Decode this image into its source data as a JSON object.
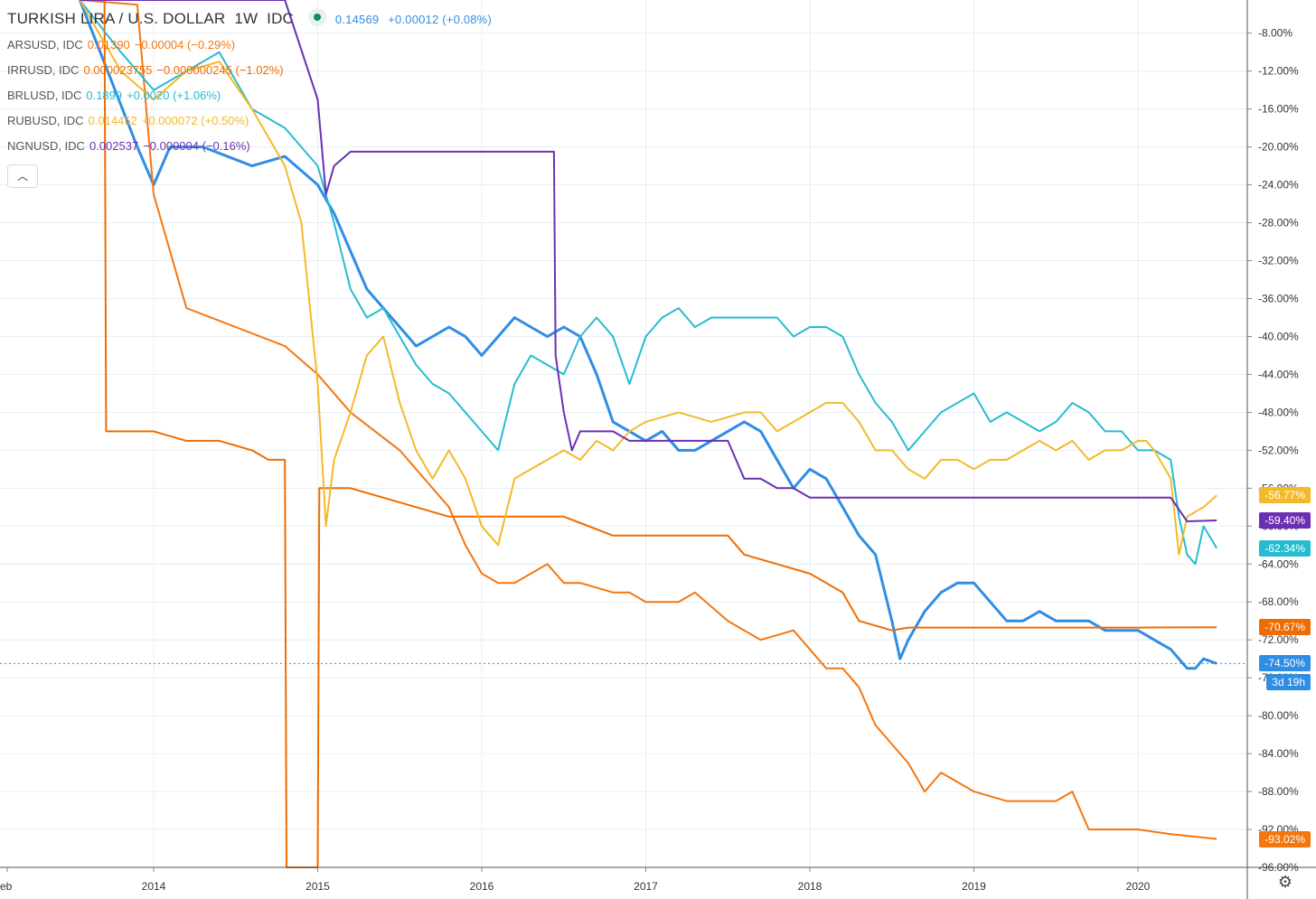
{
  "legend": {
    "main_symbol": "TURKISH LIRA / U.S. DOLLAR",
    "main_interval": "1W",
    "main_source": "IDC",
    "main_price": "0.14569",
    "main_change": "+0.00012 (+0.08%)",
    "items": [
      {
        "symbol": "ARSUSD, IDC",
        "price": "0.01390",
        "change": "−0.00004 (−0.29%)",
        "color": "#f5760f"
      },
      {
        "symbol": "IRRUSD, IDC",
        "price": "0.000023755",
        "change": "−0.000000245 (−1.02%)",
        "color": "#ef6c00"
      },
      {
        "symbol": "BRLUSD, IDC",
        "price": "0.1899",
        "change": "+0.0020 (+1.06%)",
        "color": "#26bcd0"
      },
      {
        "symbol": "RUBUSD, IDC",
        "price": "0.014452",
        "change": "+0.000072 (+0.50%)",
        "color": "#f4b928"
      },
      {
        "symbol": "NGNUSD, IDC",
        "price": "0.002537",
        "change": "−0.000004 (−0.16%)",
        "color": "#6b2fb3"
      }
    ],
    "collapse_icon": "chevron-up-icon"
  },
  "axis": {
    "y_ticks": [
      "-8.00%",
      "-12.00%",
      "-16.00%",
      "-20.00%",
      "-24.00%",
      "-28.00%",
      "-32.00%",
      "-36.00%",
      "-40.00%",
      "-44.00%",
      "-48.00%",
      "-52.00%",
      "-56.00%",
      "-60.00%",
      "-64.00%",
      "-68.00%",
      "-72.00%",
      "-76.00%",
      "-80.00%",
      "-84.00%",
      "-88.00%",
      "-92.00%",
      "-96.00%"
    ],
    "x_ticks": [
      "eb",
      "2014",
      "2015",
      "2016",
      "2017",
      "2018",
      "2019",
      "2020"
    ],
    "countdown": "3d 19h",
    "settings_icon": "gear-icon"
  },
  "chart_data": {
    "type": "line",
    "title": "TURKISH LIRA / U.S. DOLLAR · 1W · IDC",
    "xlabel": "",
    "ylabel": "",
    "ylim": [
      -96,
      -4.5
    ],
    "x_unit": "year",
    "grid": true,
    "series": [
      {
        "name": "TRYUSD",
        "color": "#2f8de4",
        "last_label": "-74.50%",
        "x": [
          2013.55,
          2013.9,
          2014.0,
          2014.1,
          2014.3,
          2014.6,
          2014.8,
          2015.0,
          2015.1,
          2015.2,
          2015.3,
          2015.4,
          2015.5,
          2015.6,
          2015.7,
          2015.8,
          2015.9,
          2016.0,
          2016.1,
          2016.2,
          2016.3,
          2016.4,
          2016.5,
          2016.6,
          2016.7,
          2016.8,
          2016.9,
          2017.0,
          2017.1,
          2017.2,
          2017.3,
          2017.4,
          2017.5,
          2017.6,
          2017.7,
          2017.8,
          2017.9,
          2018.0,
          2018.1,
          2018.2,
          2018.3,
          2018.4,
          2018.5,
          2018.55,
          2018.6,
          2018.7,
          2018.8,
          2018.9,
          2019.0,
          2019.1,
          2019.2,
          2019.3,
          2019.4,
          2019.5,
          2019.6,
          2019.7,
          2019.8,
          2019.9,
          2020.0,
          2020.1,
          2020.2,
          2020.3,
          2020.35,
          2020.4,
          2020.48
        ],
        "y": [
          -4.5,
          -20,
          -24,
          -20,
          -20,
          -22,
          -21,
          -24,
          -27,
          -31,
          -35,
          -37,
          -39,
          -41,
          -40,
          -39,
          -40,
          -42,
          -40,
          -38,
          -39,
          -40,
          -39,
          -40,
          -44,
          -49,
          -50,
          -51,
          -50,
          -52,
          -52,
          -51,
          -50,
          -49,
          -50,
          -53,
          -56,
          -54,
          -55,
          -58,
          -61,
          -63,
          -70,
          -74,
          -72,
          -69,
          -67,
          -66,
          -66,
          -68,
          -70,
          -70,
          -69,
          -70,
          -70,
          -70,
          -71,
          -71,
          -71,
          -72,
          -73,
          -75,
          -75,
          -74,
          -74.5
        ]
      },
      {
        "name": "ARSUSD",
        "color": "#f5760f",
        "last_label": "-93.02%",
        "x": [
          2013.55,
          2013.9,
          2014.0,
          2014.2,
          2014.5,
          2014.8,
          2015.0,
          2015.2,
          2015.5,
          2015.8,
          2015.9,
          2016.0,
          2016.1,
          2016.2,
          2016.4,
          2016.5,
          2016.6,
          2016.8,
          2016.9,
          2017.0,
          2017.2,
          2017.3,
          2017.5,
          2017.6,
          2017.7,
          2017.9,
          2018.0,
          2018.1,
          2018.2,
          2018.3,
          2018.4,
          2018.5,
          2018.6,
          2018.7,
          2018.8,
          2018.9,
          2019.0,
          2019.2,
          2019.3,
          2019.5,
          2019.6,
          2019.7,
          2019.8,
          2020.0,
          2020.2,
          2020.48
        ],
        "y": [
          -4.5,
          -5,
          -25,
          -37,
          -39,
          -41,
          -44,
          -48,
          -52,
          -58,
          -62,
          -65,
          -66,
          -66,
          -64,
          -66,
          -66,
          -67,
          -67,
          -68,
          -68,
          -67,
          -70,
          -71,
          -72,
          -71,
          -73,
          -75,
          -75,
          -77,
          -81,
          -83,
          -85,
          -88,
          -86,
          -87,
          -88,
          -89,
          -89,
          -89,
          -88,
          -92,
          -92,
          -92,
          -92.5,
          -93
        ]
      },
      {
        "name": "IRRUSD",
        "color": "#ef6c00",
        "last_label": "-70.67%",
        "x": [
          2013.55,
          2013.7,
          2013.71,
          2013.8,
          2014.0,
          2014.2,
          2014.4,
          2014.6,
          2014.7,
          2014.8,
          2014.81,
          2015.0,
          2015.01,
          2015.2,
          2015.4,
          2015.6,
          2015.8,
          2016.0,
          2016.2,
          2016.5,
          2016.8,
          2017.0,
          2017.3,
          2017.5,
          2017.6,
          2017.8,
          2018.0,
          2018.2,
          2018.3,
          2018.5,
          2018.6,
          2019.0,
          2019.5,
          2020.0,
          2020.48
        ],
        "y": [
          -4.5,
          -4.5,
          -50,
          -50,
          -50,
          -51,
          -51,
          -52,
          -53,
          -53,
          -100,
          -100,
          -56,
          -56,
          -57,
          -58,
          -59,
          -59,
          -59,
          -59,
          -61,
          -61,
          -61,
          -61,
          -63,
          -64,
          -65,
          -67,
          -70,
          -71,
          -70.7,
          -70.7,
          -70.7,
          -70.7,
          -70.67
        ]
      },
      {
        "name": "BRLUSD",
        "color": "#26bcd0",
        "last_label": "-62.34%",
        "x": [
          2013.55,
          2013.8,
          2014.0,
          2014.2,
          2014.4,
          2014.6,
          2014.8,
          2015.0,
          2015.1,
          2015.2,
          2015.3,
          2015.4,
          2015.5,
          2015.6,
          2015.7,
          2015.8,
          2015.9,
          2016.0,
          2016.1,
          2016.2,
          2016.3,
          2016.4,
          2016.5,
          2016.6,
          2016.7,
          2016.8,
          2016.9,
          2017.0,
          2017.1,
          2017.2,
          2017.3,
          2017.4,
          2017.5,
          2017.6,
          2017.7,
          2017.8,
          2017.9,
          2018.0,
          2018.1,
          2018.2,
          2018.3,
          2018.4,
          2018.5,
          2018.6,
          2018.7,
          2018.8,
          2018.9,
          2019.0,
          2019.1,
          2019.2,
          2019.3,
          2019.4,
          2019.5,
          2019.6,
          2019.7,
          2019.8,
          2019.9,
          2020.0,
          2020.1,
          2020.2,
          2020.25,
          2020.3,
          2020.35,
          2020.4,
          2020.48
        ],
        "y": [
          -4.5,
          -10,
          -14,
          -12,
          -10,
          -16,
          -18,
          -22,
          -28,
          -35,
          -38,
          -37,
          -40,
          -43,
          -45,
          -46,
          -48,
          -50,
          -52,
          -45,
          -42,
          -43,
          -44,
          -40,
          -38,
          -40,
          -45,
          -40,
          -38,
          -37,
          -39,
          -38,
          -38,
          -38,
          -38,
          -38,
          -40,
          -39,
          -39,
          -40,
          -44,
          -47,
          -49,
          -52,
          -50,
          -48,
          -47,
          -46,
          -49,
          -48,
          -49,
          -50,
          -49,
          -47,
          -48,
          -50,
          -50,
          -52,
          -52,
          -53,
          -59,
          -63,
          -64,
          -60,
          -62.34
        ]
      },
      {
        "name": "RUBUSD",
        "color": "#f4b928",
        "last_label": "-56.77%",
        "x": [
          2013.55,
          2013.8,
          2014.0,
          2014.2,
          2014.4,
          2014.6,
          2014.8,
          2014.9,
          2015.0,
          2015.05,
          2015.1,
          2015.2,
          2015.3,
          2015.4,
          2015.5,
          2015.6,
          2015.7,
          2015.8,
          2015.9,
          2016.0,
          2016.1,
          2016.2,
          2016.3,
          2016.4,
          2016.5,
          2016.6,
          2016.7,
          2016.8,
          2016.9,
          2017.0,
          2017.2,
          2017.4,
          2017.6,
          2017.7,
          2017.8,
          2017.9,
          2018.0,
          2018.1,
          2018.2,
          2018.3,
          2018.4,
          2018.5,
          2018.6,
          2018.7,
          2018.8,
          2018.9,
          2019.0,
          2019.1,
          2019.2,
          2019.3,
          2019.4,
          2019.5,
          2019.6,
          2019.7,
          2019.8,
          2019.9,
          2020.0,
          2020.05,
          2020.1,
          2020.2,
          2020.25,
          2020.3,
          2020.4,
          2020.48
        ],
        "y": [
          -4.5,
          -12,
          -15,
          -12,
          -11,
          -16,
          -22,
          -28,
          -45,
          -60,
          -53,
          -48,
          -42,
          -40,
          -47,
          -52,
          -55,
          -52,
          -55,
          -60,
          -62,
          -55,
          -54,
          -53,
          -52,
          -53,
          -51,
          -52,
          -50,
          -49,
          -48,
          -49,
          -48,
          -48,
          -50,
          -49,
          -48,
          -47,
          -47,
          -49,
          -52,
          -52,
          -54,
          -55,
          -53,
          -53,
          -54,
          -53,
          -53,
          -52,
          -51,
          -52,
          -51,
          -53,
          -52,
          -52,
          -51,
          -51,
          -52,
          -55,
          -63,
          -59,
          -58,
          -56.77
        ]
      },
      {
        "name": "NGNUSD",
        "color": "#6b2fb3",
        "last_label": "-59.40%",
        "x": [
          2013.55,
          2014.5,
          2014.8,
          2015.0,
          2015.05,
          2015.1,
          2015.2,
          2015.4,
          2015.6,
          2015.8,
          2016.0,
          2016.2,
          2016.4,
          2016.44,
          2016.45,
          2016.5,
          2016.55,
          2016.6,
          2016.8,
          2016.9,
          2017.0,
          2017.2,
          2017.4,
          2017.5,
          2017.6,
          2017.7,
          2017.8,
          2017.9,
          2018.0,
          2018.5,
          2019.0,
          2019.5,
          2020.0,
          2020.15,
          2020.2,
          2020.3,
          2020.48
        ],
        "y": [
          -4.5,
          -4.5,
          -4.5,
          -15,
          -25,
          -22,
          -20.5,
          -20.5,
          -20.5,
          -20.5,
          -20.5,
          -20.5,
          -20.5,
          -20.5,
          -42,
          -48,
          -52,
          -50,
          -50,
          -51,
          -51,
          -51,
          -51,
          -51,
          -55,
          -55,
          -56,
          -56,
          -57,
          -57,
          -57,
          -57,
          -57,
          -57,
          -57,
          -59.5,
          -59.4
        ]
      }
    ]
  }
}
